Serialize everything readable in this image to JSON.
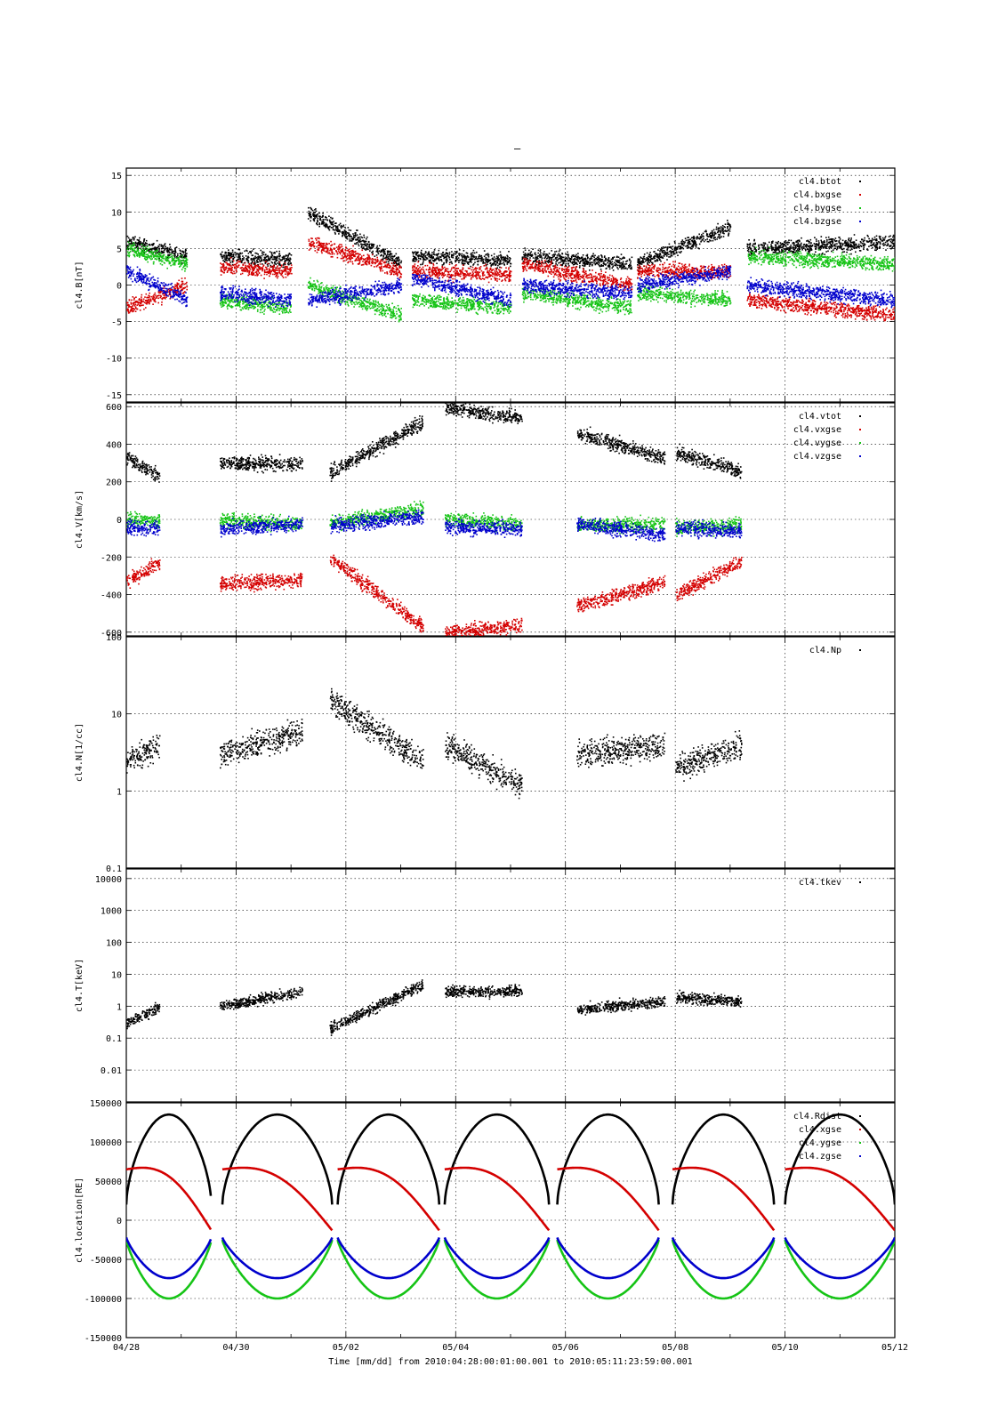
{
  "figure": {
    "title": "–",
    "xlabel": "Time [mm/dd]  from 2010:04:28:00:01:00.001  to  2010:05:11:23:59:00.001",
    "xticks": [
      "04/28",
      "04/30",
      "05/02",
      "05/04",
      "05/06",
      "05/08",
      "05/10",
      "05/12"
    ]
  },
  "colors": {
    "black": "#000000",
    "red": "#d40000",
    "green": "#16c416",
    "blue": "#0000cc"
  },
  "chart_data": [
    {
      "type": "scatter",
      "ylabel": "cl4.B[nT]",
      "ylim": [
        -16,
        16
      ],
      "yscale": "linear",
      "yticks": [
        -15,
        -10,
        -5,
        0,
        5,
        10,
        15
      ],
      "ytick_labels": [
        "-15",
        "-10",
        "-5",
        "0",
        "5",
        "10",
        "15"
      ],
      "grid": true,
      "legend_position": "top-right",
      "series": [
        {
          "name": "cl4.btot",
          "color": "#000000",
          "segments": [
            [
              0,
              1.1,
              6,
              4
            ],
            [
              1.7,
              3.0,
              4,
              3.5
            ],
            [
              3.3,
              5.0,
              10,
              3
            ],
            [
              5.2,
              7.0,
              4,
              3.5
            ],
            [
              7.2,
              9.2,
              4,
              3
            ],
            [
              9.3,
              11.0,
              3,
              8
            ],
            [
              11.3,
              14.0,
              5,
              6
            ]
          ]
        },
        {
          "name": "cl4.bxgse",
          "color": "#d40000",
          "segments": [
            [
              0,
              1.1,
              -3,
              0
            ],
            [
              1.7,
              3.0,
              2.5,
              2
            ],
            [
              3.3,
              5.0,
              6,
              2
            ],
            [
              5.2,
              7.0,
              2,
              1.5
            ],
            [
              7.2,
              9.2,
              3,
              0
            ],
            [
              9.3,
              11.0,
              2,
              2
            ],
            [
              11.3,
              14.0,
              -2,
              -4
            ]
          ]
        },
        {
          "name": "cl4.bygse",
          "color": "#16c416",
          "segments": [
            [
              0,
              1.1,
              5,
              3
            ],
            [
              1.7,
              3.0,
              -2,
              -3
            ],
            [
              3.3,
              5.0,
              0,
              -4
            ],
            [
              5.2,
              7.0,
              -2,
              -3
            ],
            [
              7.2,
              9.2,
              -1,
              -3
            ],
            [
              9.3,
              11.0,
              -1,
              -2
            ],
            [
              11.3,
              14.0,
              4,
              3
            ]
          ]
        },
        {
          "name": "cl4.bzgse",
          "color": "#0000cc",
          "segments": [
            [
              0,
              1.1,
              2,
              -2
            ],
            [
              1.7,
              3.0,
              -1,
              -2
            ],
            [
              3.3,
              5.0,
              -2,
              0
            ],
            [
              5.2,
              7.0,
              1,
              -2
            ],
            [
              7.2,
              9.2,
              0,
              -1
            ],
            [
              9.3,
              11.0,
              0,
              2
            ],
            [
              11.3,
              14.0,
              0,
              -2
            ]
          ]
        }
      ]
    },
    {
      "type": "scatter",
      "ylabel": "cl4.V[km/s]",
      "ylim": [
        -620,
        620
      ],
      "yscale": "linear",
      "yticks": [
        -600,
        -400,
        -200,
        0,
        200,
        400,
        600
      ],
      "ytick_labels": [
        "-600",
        "-400",
        "-200",
        "0",
        "200",
        "400",
        "600"
      ],
      "grid": true,
      "legend_position": "top-right",
      "series": [
        {
          "name": "cl4.vtot",
          "color": "#000000",
          "segments": [
            [
              0,
              0.6,
              330,
              230
            ],
            [
              1.7,
              3.2,
              300,
              300
            ],
            [
              3.7,
              5.4,
              250,
              520
            ],
            [
              5.8,
              7.2,
              600,
              540
            ],
            [
              8.2,
              9.8,
              460,
              330
            ],
            [
              10.0,
              11.2,
              360,
              260
            ]
          ]
        },
        {
          "name": "cl4.vxgse",
          "color": "#d40000",
          "segments": [
            [
              0,
              0.6,
              -330,
              -230
            ],
            [
              1.7,
              3.2,
              -340,
              -320
            ],
            [
              3.7,
              5.4,
              -200,
              -570
            ],
            [
              5.8,
              7.2,
              -600,
              -560
            ],
            [
              8.2,
              9.8,
              -460,
              -330
            ],
            [
              10.0,
              11.2,
              -400,
              -220
            ]
          ]
        },
        {
          "name": "cl4.vygse",
          "color": "#16c416",
          "segments": [
            [
              0,
              0.6,
              0,
              0
            ],
            [
              1.7,
              3.2,
              0,
              -20
            ],
            [
              3.7,
              5.4,
              -20,
              60
            ],
            [
              5.8,
              7.2,
              0,
              -20
            ],
            [
              8.2,
              9.8,
              -30,
              -20
            ],
            [
              10.0,
              11.2,
              -40,
              -30
            ]
          ]
        },
        {
          "name": "cl4.vzgse",
          "color": "#0000cc",
          "segments": [
            [
              0,
              0.6,
              -40,
              -50
            ],
            [
              1.7,
              3.2,
              -50,
              -20
            ],
            [
              3.7,
              5.4,
              -30,
              20
            ],
            [
              5.8,
              7.2,
              -40,
              -50
            ],
            [
              8.2,
              9.8,
              -20,
              -80
            ],
            [
              10.0,
              11.2,
              -40,
              -60
            ]
          ]
        }
      ]
    },
    {
      "type": "scatter",
      "ylabel": "cl4.N[1/cc]",
      "ylim": [
        0.1,
        100
      ],
      "yscale": "log",
      "yticks": [
        0.1,
        1,
        10,
        100
      ],
      "ytick_labels": [
        "0.1",
        "1",
        "10",
        "100"
      ],
      "grid": true,
      "legend_position": "top-right",
      "series": [
        {
          "name": "cl4.Np",
          "color": "#000000",
          "segments": [
            [
              0,
              0.6,
              2.5,
              4
            ],
            [
              1.7,
              3.2,
              3,
              6
            ],
            [
              3.7,
              5.4,
              15,
              2.5
            ],
            [
              5.8,
              7.2,
              4,
              1.2
            ],
            [
              8.2,
              9.8,
              3,
              4
            ],
            [
              10.0,
              11.2,
              2,
              4
            ]
          ]
        }
      ]
    },
    {
      "type": "scatter",
      "ylabel": "cl4.T[keV]",
      "ylim": [
        0.001,
        20000
      ],
      "yscale": "log",
      "yticks": [
        0.01,
        0.1,
        1,
        10,
        100,
        1000,
        10000
      ],
      "ytick_labels": [
        "0.01",
        "0.1",
        "1",
        "10",
        "100",
        "1000",
        "10000"
      ],
      "grid": true,
      "legend_position": "top-right",
      "series": [
        {
          "name": "cl4.tkev",
          "color": "#000000",
          "segments": [
            [
              0,
              0.6,
              0.3,
              1
            ],
            [
              1.7,
              3.2,
              1,
              3
            ],
            [
              3.7,
              5.4,
              0.2,
              5
            ],
            [
              5.8,
              7.2,
              3,
              3
            ],
            [
              8.2,
              9.8,
              0.8,
              1.5
            ],
            [
              10.0,
              11.2,
              2,
              1.5
            ]
          ]
        }
      ]
    },
    {
      "type": "line",
      "ylabel": "cl4.location[RE]",
      "ylim": [
        -150000,
        150000
      ],
      "yscale": "linear",
      "yticks": [
        -150000,
        -100000,
        -50000,
        0,
        50000,
        100000
      ],
      "ytick_labels": [
        "-150000",
        "-100000",
        "-50000",
        "0",
        "50000",
        "100000"
      ],
      "top_tick_label": "150000",
      "grid": true,
      "legend_position": "top-right",
      "series": [
        {
          "name": "cl4.Rdist",
          "color": "#000000"
        },
        {
          "name": "cl4.xgse",
          "color": "#d40000"
        },
        {
          "name": "cl4.ygse",
          "color": "#16c416"
        },
        {
          "name": "cl4.zgse",
          "color": "#0000cc"
        }
      ]
    }
  ]
}
